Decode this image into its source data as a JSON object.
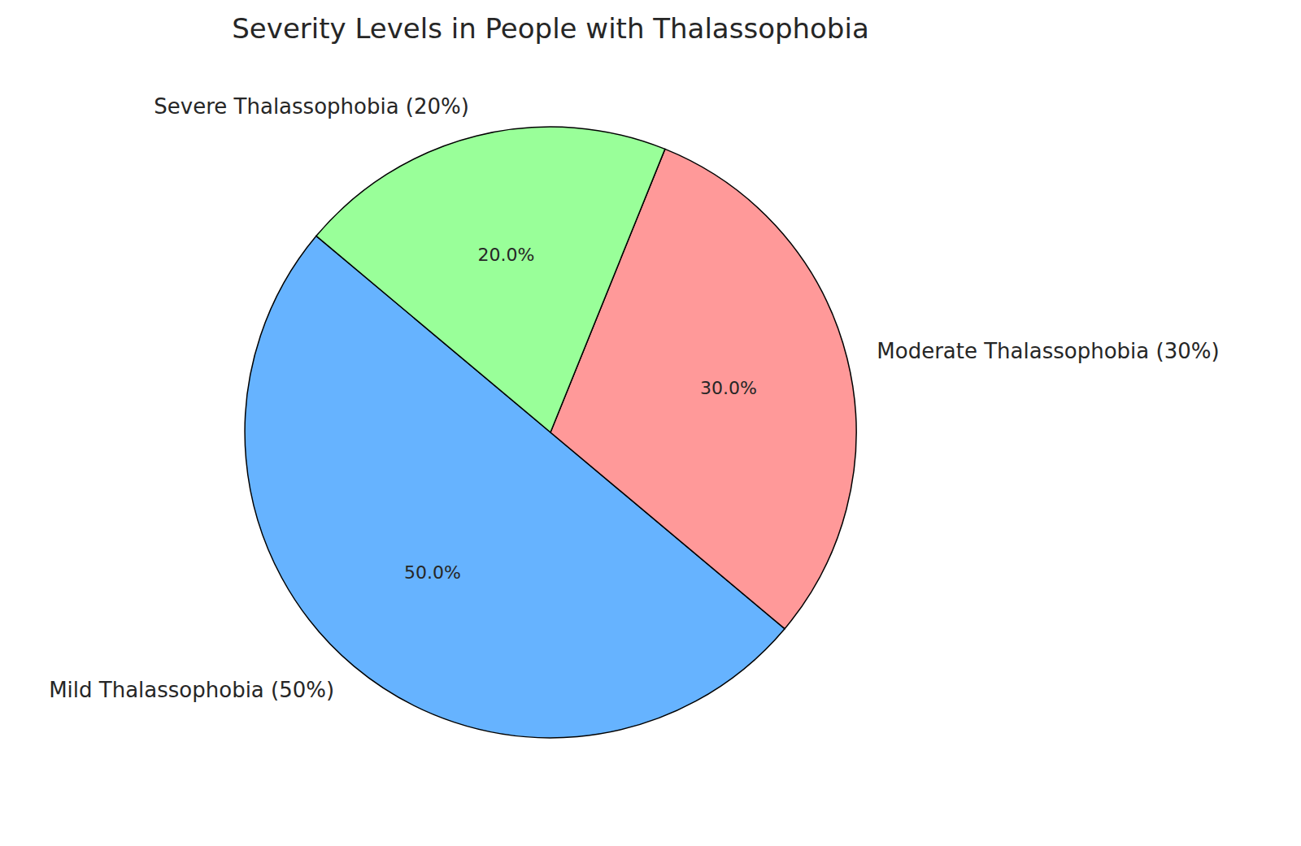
{
  "chart_data": {
    "type": "pie",
    "title": "Severity Levels in People with Thalassophobia",
    "categories": [
      "Mild Thalassophobia (50%)",
      "Moderate Thalassophobia (30%)",
      "Severe Thalassophobia (20%)"
    ],
    "values": [
      50,
      30,
      20
    ],
    "value_labels": [
      "50.0%",
      "30.0%",
      "20.0%"
    ],
    "colors": [
      "#66b3ff",
      "#ff9999",
      "#99ff99"
    ],
    "data_labels": true
  }
}
